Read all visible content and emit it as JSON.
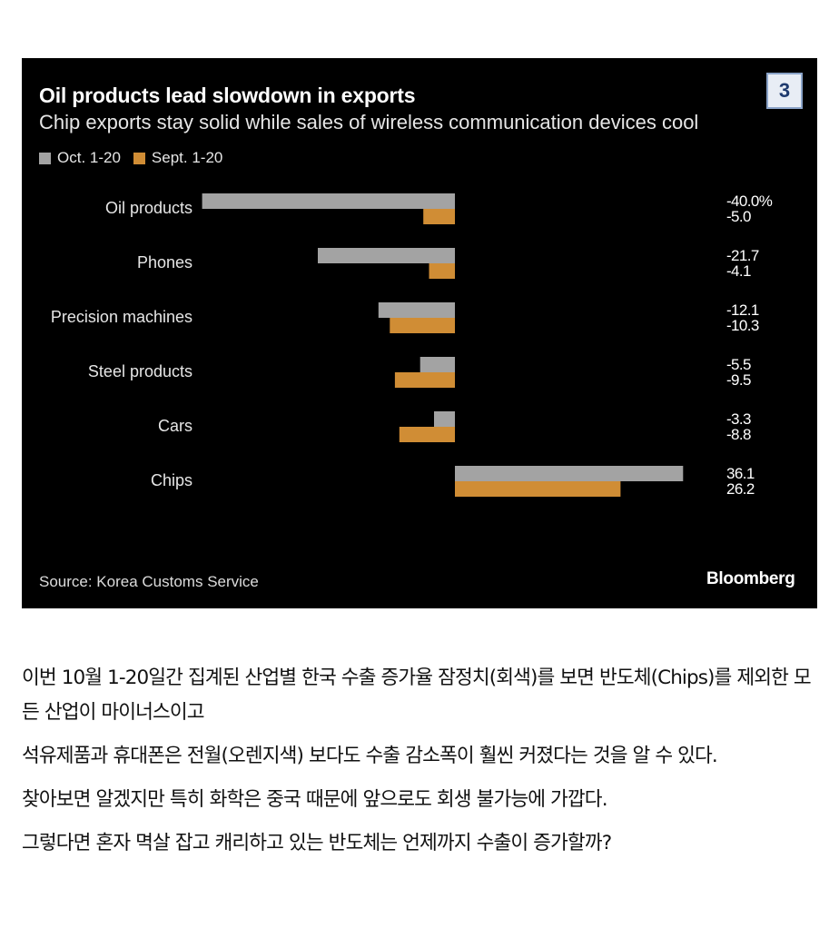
{
  "badge": "3",
  "source": "Source: Korea Customs Service",
  "logo": "Bloomberg",
  "colors": {
    "oct": "#a3a3a3",
    "sept": "#d08d35",
    "background": "#000000"
  },
  "chart_data": {
    "type": "bar",
    "orientation": "horizontal",
    "title": "Oil products lead slowdown in exports",
    "subtitle": "Chip exports stay solid while sales of wireless communication devices cool",
    "categories": [
      "Oil products",
      "Phones",
      "Precision machines",
      "Steel products",
      "Cars",
      "Chips"
    ],
    "series": [
      {
        "name": "Oct. 1-20",
        "values": [
          -40.0,
          -21.7,
          -12.1,
          -5.5,
          -3.3,
          36.1
        ]
      },
      {
        "name": "Sept. 1-20",
        "values": [
          -5.0,
          -4.1,
          -10.3,
          -9.5,
          -8.8,
          26.2
        ]
      }
    ],
    "value_labels": [
      [
        "-40.0%",
        "-5.0"
      ],
      [
        "-21.7",
        "-4.1"
      ],
      [
        "-12.1",
        "-10.3"
      ],
      [
        "-5.5",
        "-9.5"
      ],
      [
        "-3.3",
        "-8.8"
      ],
      [
        "36.1",
        "26.2"
      ]
    ],
    "xlim": [
      -40,
      36.1
    ],
    "legend": "top-left",
    "grid": false
  },
  "article": {
    "paragraphs": [
      "이번 10월 1-20일간 집계된 산업별 한국 수출 증가율 잠정치(회색)를 보면 반도체(Chips)를 제외한 모든 산업이 마이너스이고",
      "석유제품과 휴대폰은 전월(오렌지색) 보다도 수출 감소폭이 훨씬 커졌다는 것을 알 수 있다.",
      "찾아보면 알겠지만 특히 화학은 중국 때문에 앞으로도 회생 불가능에 가깝다.",
      "그렇다면 혼자 멱살 잡고 캐리하고 있는 반도체는 언제까지 수출이 증가할까?"
    ]
  }
}
